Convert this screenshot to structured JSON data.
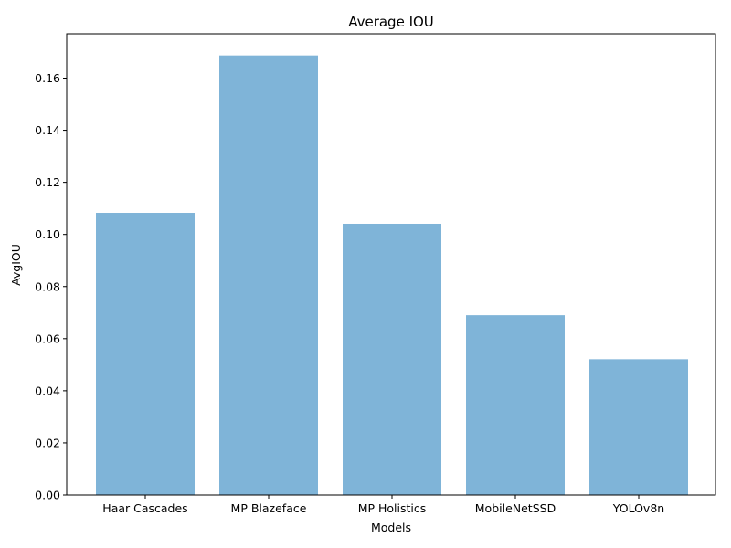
{
  "chart_data": {
    "type": "bar",
    "title": "Average IOU",
    "xlabel": "Models",
    "ylabel": "AvgIOU",
    "categories": [
      "Haar Cascades",
      "MP Blazeface",
      "MP Holistics",
      "MobileNetSSD",
      "YOLOv8n"
    ],
    "values": [
      0.1083,
      0.1687,
      0.1041,
      0.069,
      0.0521
    ],
    "ylim": [
      0,
      0.177
    ],
    "yticks": [
      0.0,
      0.02,
      0.04,
      0.06,
      0.08,
      0.1,
      0.12,
      0.14,
      0.16
    ],
    "ytick_labels": [
      "0.00",
      "0.02",
      "0.04",
      "0.06",
      "0.08",
      "0.10",
      "0.12",
      "0.14",
      "0.16"
    ],
    "bar_color": "#7fb4d8",
    "grid": false,
    "legend": "none"
  }
}
